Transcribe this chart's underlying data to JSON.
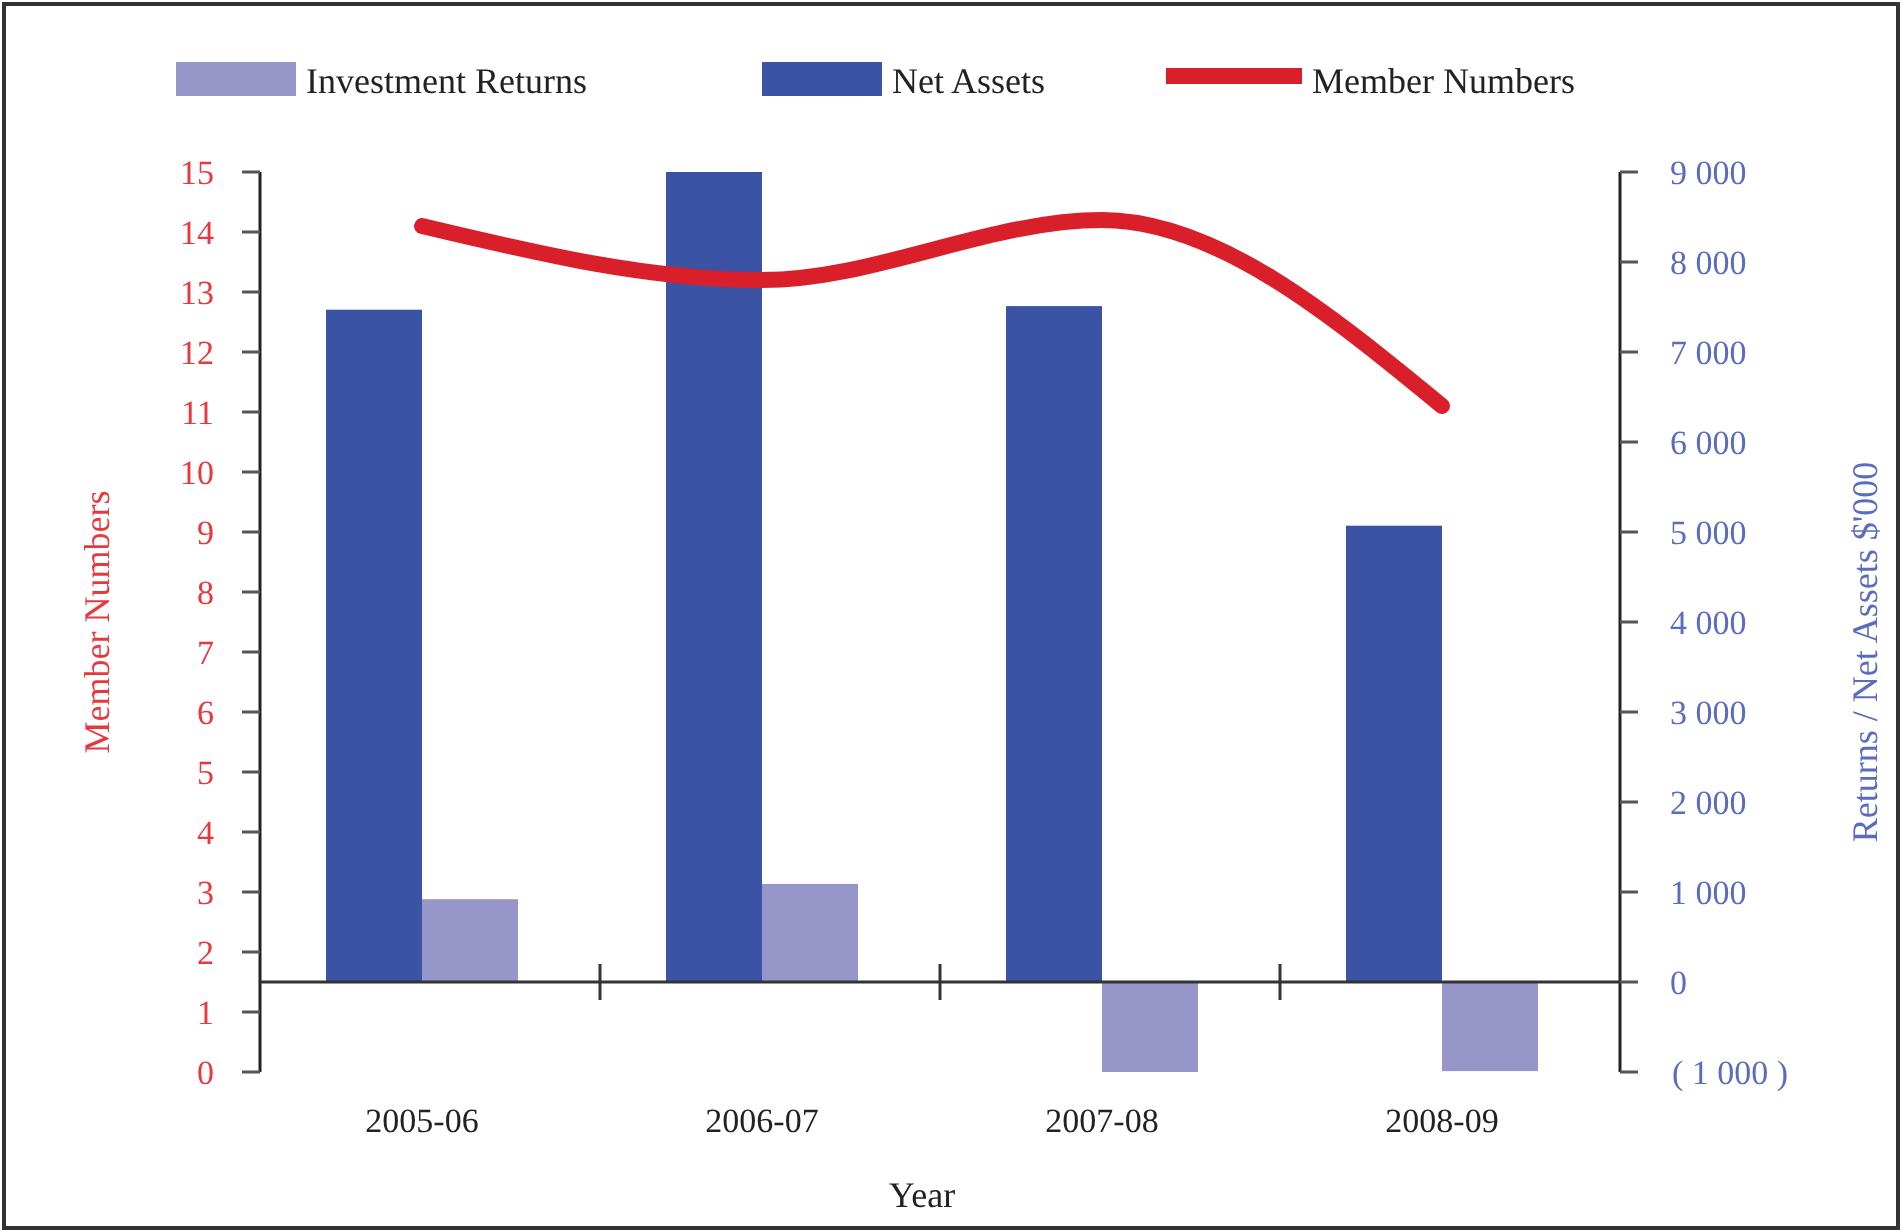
{
  "chart_data": {
    "type": "bar",
    "xlabel": "Year",
    "ylabel": "Member Numbers",
    "y2label": "Returns / Net Assets $'000",
    "categories": [
      "2005-06",
      "2006-07",
      "2007-08",
      "2008-09"
    ],
    "series": [
      {
        "name": "Investment Returns",
        "color": "#9696c8",
        "values": [
          920,
          1090,
          -1000,
          -990
        ],
        "axis": "y2"
      },
      {
        "name": "Net Assets",
        "color": "#3a53a4",
        "values": [
          7470,
          9000,
          7510,
          5070
        ],
        "axis": "y2"
      },
      {
        "name": "Member Numbers",
        "type": "line",
        "color": "#d9202a",
        "values": [
          14.1,
          13.2,
          14.2,
          11.1
        ]
      }
    ],
    "ylim": [
      0,
      15
    ],
    "yticks": [
      0,
      1,
      2,
      3,
      4,
      5,
      6,
      7,
      8,
      9,
      10,
      11,
      12,
      13,
      14,
      15
    ],
    "y2lim": [
      -1000,
      9000
    ],
    "y2ticks": [
      {
        "value": -1000,
        "label": "( 1 000 )"
      },
      {
        "value": 0,
        "label": "0"
      },
      {
        "value": 1000,
        "label": "1 000"
      },
      {
        "value": 2000,
        "label": "2 000"
      },
      {
        "value": 3000,
        "label": "3 000"
      },
      {
        "value": 4000,
        "label": "4 000"
      },
      {
        "value": 5000,
        "label": "5 000"
      },
      {
        "value": 6000,
        "label": "6 000"
      },
      {
        "value": 7000,
        "label": "7 000"
      },
      {
        "value": 8000,
        "label": "8 000"
      },
      {
        "value": 9000,
        "label": "9 000"
      }
    ],
    "legend": "top"
  }
}
